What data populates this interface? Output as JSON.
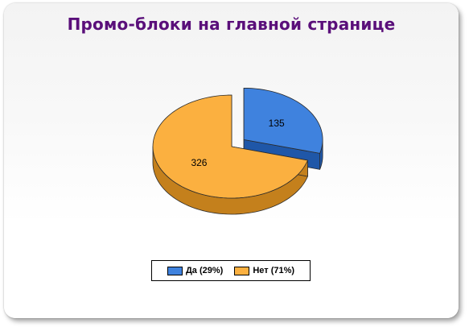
{
  "chart_data": {
    "type": "pie",
    "title": "Промо-блоки на главной странице",
    "categories": [
      "Да",
      "Нет"
    ],
    "values": [
      135,
      326
    ],
    "percent_labels": [
      "29%",
      "71%"
    ],
    "legend_labels": [
      "Да (29%)",
      "Нет (71%)"
    ],
    "data_labels": [
      "135",
      "326"
    ],
    "colors": [
      "#3f82de",
      "#fbb040"
    ],
    "side_colors": [
      "#1f57a8",
      "#c4801c"
    ],
    "legend_placement": "bottom-center",
    "style": "3d-exploded"
  }
}
